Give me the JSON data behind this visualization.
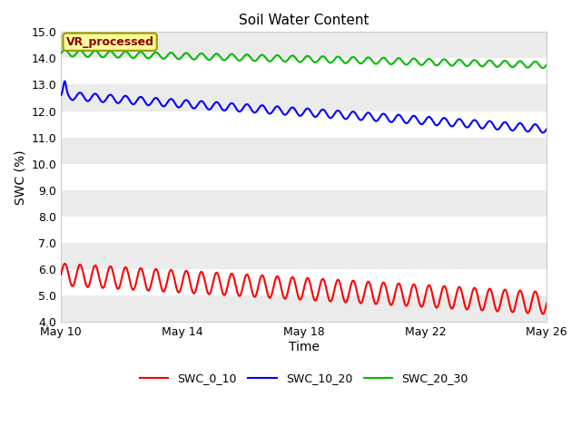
{
  "title": "Soil Water Content",
  "xlabel": "Time",
  "ylabel": "SWC (%)",
  "ylim": [
    4.0,
    15.0
  ],
  "yticks": [
    4.0,
    5.0,
    6.0,
    7.0,
    8.0,
    9.0,
    10.0,
    11.0,
    12.0,
    13.0,
    14.0,
    15.0
  ],
  "xlim": [
    0,
    16
  ],
  "xtick_days": [
    0,
    4,
    8,
    12,
    16
  ],
  "xtick_labels": [
    "May 10",
    "May 14",
    "May 18",
    "May 22",
    "May 26"
  ],
  "annotation_text": "VR_processed",
  "annotation_color": "#8B0000",
  "annotation_bg": "#FFFF99",
  "annotation_border": "#999900",
  "line_red_color": "#FF0000",
  "line_blue_color": "#0000FF",
  "line_green_color": "#00BB00",
  "legend_labels": [
    "SWC_0_10",
    "SWC_10_20",
    "SWC_20_30"
  ],
  "bg_color": "#FFFFFF",
  "band_light": "#FFFFFF",
  "band_dark": "#EBEBEB",
  "band_ranges": [
    [
      4.0,
      5.0
    ],
    [
      5.0,
      6.0
    ],
    [
      6.0,
      7.0
    ],
    [
      7.0,
      8.0
    ],
    [
      8.0,
      9.0
    ],
    [
      9.0,
      10.0
    ],
    [
      10.0,
      11.0
    ],
    [
      11.0,
      12.0
    ],
    [
      12.0,
      13.0
    ],
    [
      13.0,
      14.0
    ],
    [
      14.0,
      15.0
    ]
  ],
  "title_fontsize": 11,
  "axis_label_fontsize": 10,
  "tick_fontsize": 9,
  "linewidth": 1.5,
  "figure_width": 6.4,
  "figure_height": 4.8
}
